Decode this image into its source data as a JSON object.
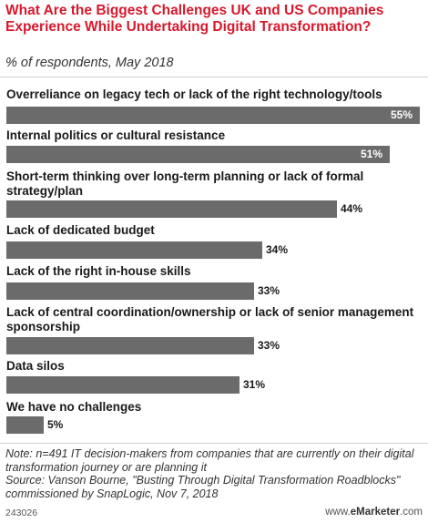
{
  "title": "What Are the Biggest Challenges UK and US Companies Experience While Undertaking Digital Transformation?",
  "subtitle": "% of respondents, May 2018",
  "note": "Note: n=491 IT decision-makers from companies that are currently on their digital transformation journey or are planning it",
  "source": "Source: Vanson Bourne, \"Busting Through Digital Transformation Roadblocks\" commissioned by SnapLogic, Nov 7, 2018",
  "chart_id": "243026",
  "brand": {
    "prefix": "www.",
    "name": "eMarketer",
    "suffix": ".com"
  },
  "colors": {
    "title": "#d7192d",
    "bar": "#6b6b6b",
    "value_inside": "#ffffff"
  },
  "chart_data": {
    "type": "bar",
    "orientation": "horizontal",
    "unit": "%",
    "xlim": [
      0,
      55
    ],
    "grid": false,
    "categories": [
      "Overreliance on legacy tech or lack of the right technology/tools",
      "Internal politics or cultural resistance",
      "Short-term thinking over long-term planning or lack of formal strategy/plan",
      "Lack of dedicated budget",
      "Lack of the right in-house skills",
      "Lack of central coordination/ownership or lack of senior management sponsorship",
      "Data silos",
      "We have no challenges"
    ],
    "values": [
      55,
      51,
      44,
      34,
      33,
      33,
      31,
      5
    ],
    "value_labels": [
      "55%",
      "51%",
      "44%",
      "34%",
      "33%",
      "33%",
      "31%",
      "5%"
    ]
  }
}
